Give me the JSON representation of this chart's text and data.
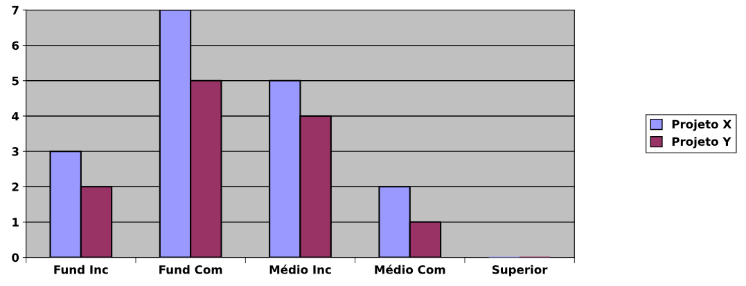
{
  "chart_data": {
    "type": "bar",
    "categories": [
      "Fund Inc",
      "Fund Com",
      "Médio Inc",
      "Médio Com",
      "Superior"
    ],
    "series": [
      {
        "name": "Projeto X",
        "color": "#9999ff",
        "values": [
          3,
          7,
          5,
          2,
          0
        ]
      },
      {
        "name": "Projeto Y",
        "color": "#993366",
        "values": [
          2,
          5,
          4,
          1,
          0
        ]
      }
    ],
    "ylim": [
      0,
      7
    ],
    "yticks": [
      0,
      1,
      2,
      3,
      4,
      5,
      6,
      7
    ],
    "grid": "y",
    "legend": "right"
  }
}
